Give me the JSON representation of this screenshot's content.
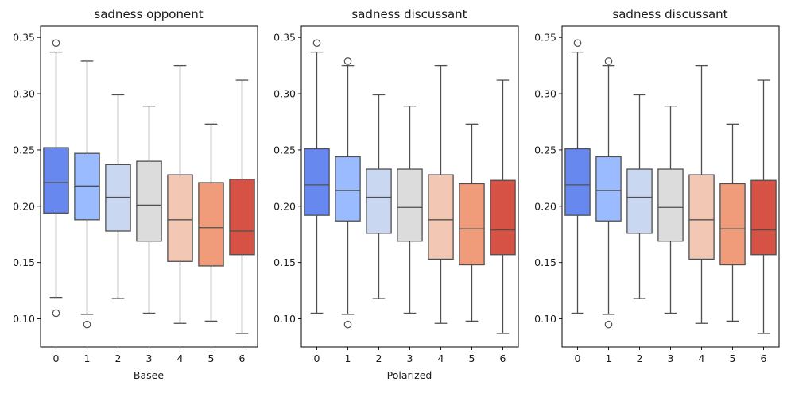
{
  "chart_data": [
    {
      "type": "box",
      "title": "sadness opponent",
      "xlabel": "Basee",
      "ylabel": "",
      "ylim": [
        0.075,
        0.36
      ],
      "yticks": [
        "0.10",
        "0.15",
        "0.20",
        "0.25",
        "0.30",
        "0.35"
      ],
      "categories": [
        "0",
        "1",
        "2",
        "3",
        "4",
        "5",
        "6"
      ],
      "colors": [
        "#6788ee",
        "#9abbff",
        "#c9d7f0",
        "#dddcdc",
        "#f2c8b4",
        "#f09c7b",
        "#d65244"
      ],
      "boxes": [
        {
          "q1": 0.194,
          "median": 0.221,
          "q3": 0.252,
          "whisker_low": 0.119,
          "whisker_high": 0.337,
          "outliers": [
            0.345,
            0.105
          ]
        },
        {
          "q1": 0.188,
          "median": 0.218,
          "q3": 0.247,
          "whisker_low": 0.104,
          "whisker_high": 0.329,
          "outliers": [
            0.095
          ]
        },
        {
          "q1": 0.178,
          "median": 0.208,
          "q3": 0.237,
          "whisker_low": 0.118,
          "whisker_high": 0.299,
          "outliers": []
        },
        {
          "q1": 0.169,
          "median": 0.201,
          "q3": 0.24,
          "whisker_low": 0.105,
          "whisker_high": 0.289,
          "outliers": []
        },
        {
          "q1": 0.151,
          "median": 0.188,
          "q3": 0.228,
          "whisker_low": 0.096,
          "whisker_high": 0.325,
          "outliers": []
        },
        {
          "q1": 0.147,
          "median": 0.181,
          "q3": 0.221,
          "whisker_low": 0.098,
          "whisker_high": 0.273,
          "outliers": []
        },
        {
          "q1": 0.157,
          "median": 0.178,
          "q3": 0.224,
          "whisker_low": 0.087,
          "whisker_high": 0.312,
          "outliers": []
        }
      ]
    },
    {
      "type": "box",
      "title": "sadness discussant",
      "xlabel": "Polarized",
      "ylabel": "",
      "ylim": [
        0.075,
        0.36
      ],
      "yticks": [
        "0.10",
        "0.15",
        "0.20",
        "0.25",
        "0.30",
        "0.35"
      ],
      "categories": [
        "0",
        "1",
        "2",
        "3",
        "4",
        "5",
        "6"
      ],
      "colors": [
        "#6788ee",
        "#9abbff",
        "#c9d7f0",
        "#dddcdc",
        "#f2c8b4",
        "#f09c7b",
        "#d65244"
      ],
      "boxes": [
        {
          "q1": 0.192,
          "median": 0.219,
          "q3": 0.251,
          "whisker_low": 0.105,
          "whisker_high": 0.337,
          "outliers": [
            0.345
          ]
        },
        {
          "q1": 0.187,
          "median": 0.214,
          "q3": 0.244,
          "whisker_low": 0.104,
          "whisker_high": 0.325,
          "outliers": [
            0.329,
            0.095
          ]
        },
        {
          "q1": 0.176,
          "median": 0.208,
          "q3": 0.233,
          "whisker_low": 0.118,
          "whisker_high": 0.299,
          "outliers": []
        },
        {
          "q1": 0.169,
          "median": 0.199,
          "q3": 0.233,
          "whisker_low": 0.105,
          "whisker_high": 0.289,
          "outliers": []
        },
        {
          "q1": 0.153,
          "median": 0.188,
          "q3": 0.228,
          "whisker_low": 0.096,
          "whisker_high": 0.325,
          "outliers": []
        },
        {
          "q1": 0.148,
          "median": 0.18,
          "q3": 0.22,
          "whisker_low": 0.098,
          "whisker_high": 0.273,
          "outliers": []
        },
        {
          "q1": 0.157,
          "median": 0.179,
          "q3": 0.223,
          "whisker_low": 0.087,
          "whisker_high": 0.312,
          "outliers": []
        }
      ]
    },
    {
      "type": "box",
      "title": "sadness discussant",
      "xlabel": "",
      "ylabel": "",
      "ylim": [
        0.075,
        0.36
      ],
      "yticks": [
        "0.10",
        "0.15",
        "0.20",
        "0.25",
        "0.30",
        "0.35"
      ],
      "categories": [
        "0",
        "1",
        "2",
        "3",
        "4",
        "5",
        "6"
      ],
      "colors": [
        "#6788ee",
        "#9abbff",
        "#c9d7f0",
        "#dddcdc",
        "#f2c8b4",
        "#f09c7b",
        "#d65244"
      ],
      "boxes": [
        {
          "q1": 0.192,
          "median": 0.219,
          "q3": 0.251,
          "whisker_low": 0.105,
          "whisker_high": 0.337,
          "outliers": [
            0.345
          ]
        },
        {
          "q1": 0.187,
          "median": 0.214,
          "q3": 0.244,
          "whisker_low": 0.104,
          "whisker_high": 0.325,
          "outliers": [
            0.329,
            0.095
          ]
        },
        {
          "q1": 0.176,
          "median": 0.208,
          "q3": 0.233,
          "whisker_low": 0.118,
          "whisker_high": 0.299,
          "outliers": []
        },
        {
          "q1": 0.169,
          "median": 0.199,
          "q3": 0.233,
          "whisker_low": 0.105,
          "whisker_high": 0.289,
          "outliers": []
        },
        {
          "q1": 0.153,
          "median": 0.188,
          "q3": 0.228,
          "whisker_low": 0.096,
          "whisker_high": 0.325,
          "outliers": []
        },
        {
          "q1": 0.148,
          "median": 0.18,
          "q3": 0.22,
          "whisker_low": 0.098,
          "whisker_high": 0.273,
          "outliers": []
        },
        {
          "q1": 0.157,
          "median": 0.179,
          "q3": 0.223,
          "whisker_low": 0.087,
          "whisker_high": 0.312,
          "outliers": []
        }
      ]
    }
  ]
}
